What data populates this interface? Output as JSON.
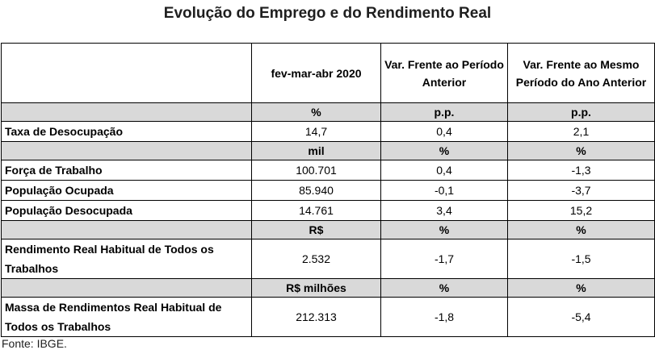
{
  "title": "Evolução do Emprego e do Rendimento Real",
  "columns": {
    "c1": "fev-mar-abr 2020",
    "c2": "Var. Frente ao Período Anterior",
    "c3": "Var. Frente ao Mesmo Período do Ano Anterior"
  },
  "units": [
    {
      "c1": "%",
      "c2": "p.p.",
      "c3": "p.p."
    },
    {
      "c1": "mil",
      "c2": "%",
      "c3": "%"
    },
    {
      "c1": "R$",
      "c2": "%",
      "c3": "%"
    },
    {
      "c1": "R$ milhões",
      "c2": "%",
      "c3": "%"
    }
  ],
  "rows": [
    {
      "label": "Taxa de Desocupação",
      "c1": "14,7",
      "c2": "0,4",
      "c3": "2,1"
    },
    {
      "label": "Força de Trabalho",
      "c1": "100.701",
      "c2": "0,4",
      "c3": "-1,3"
    },
    {
      "label": "População Ocupada",
      "c1": "85.940",
      "c2": "-0,1",
      "c3": "-3,7"
    },
    {
      "label": "População Desocupada",
      "c1": "14.761",
      "c2": "3,4",
      "c3": "15,2"
    },
    {
      "label": "Rendimento Real Habitual de Todos os Trabalhos",
      "c1": "2.532",
      "c2": "-1,7",
      "c3": "-1,5"
    },
    {
      "label": "Massa de Rendimentos Real Habitual de Todos os Trabalhos",
      "c1": "212.313",
      "c2": "-1,8",
      "c3": "-5,4"
    }
  ],
  "source": "Fonte: IBGE."
}
